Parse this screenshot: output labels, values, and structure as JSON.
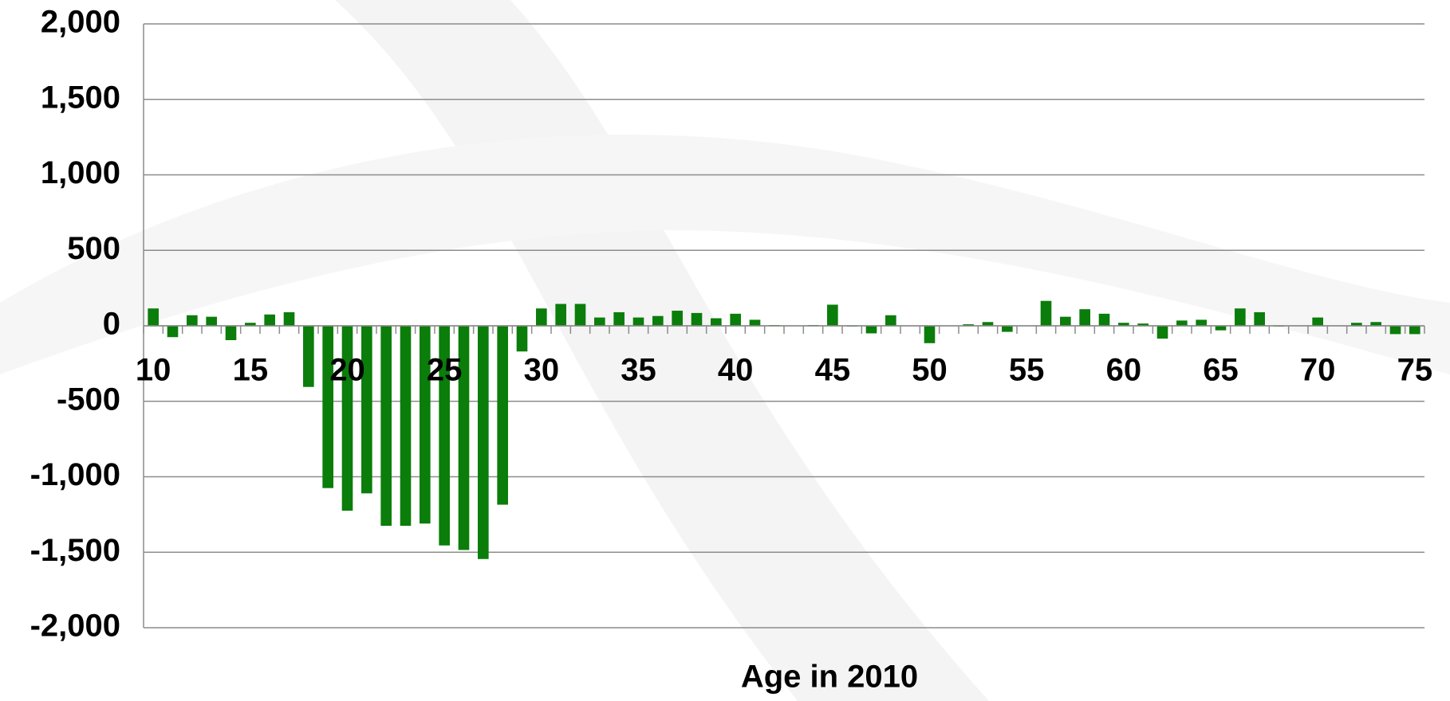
{
  "chart_data": {
    "type": "bar",
    "x_label": "Age in 2010",
    "categories": [
      "10",
      null,
      null,
      null,
      null,
      "15",
      null,
      null,
      null,
      null,
      "20",
      null,
      null,
      null,
      null,
      "25",
      null,
      null,
      null,
      null,
      "30",
      null,
      null,
      null,
      null,
      "35",
      null,
      null,
      null,
      null,
      "40",
      null,
      null,
      null,
      null,
      "45",
      null,
      null,
      null,
      null,
      "50",
      null,
      null,
      null,
      null,
      "55",
      null,
      null,
      null,
      null,
      "60",
      null,
      null,
      null,
      null,
      "65",
      null,
      null,
      null,
      null,
      "70",
      null,
      null,
      null,
      null,
      "75"
    ],
    "values": [
      115,
      -75,
      70,
      60,
      -95,
      20,
      75,
      90,
      -405,
      -1075,
      -1225,
      -1110,
      -1325,
      -1325,
      -1310,
      -1455,
      -1485,
      -1545,
      -1185,
      -170,
      115,
      145,
      145,
      55,
      90,
      55,
      65,
      100,
      85,
      50,
      80,
      40,
      5,
      0,
      5,
      140,
      -5,
      -50,
      70,
      0,
      -115,
      0,
      10,
      25,
      -40,
      0,
      165,
      60,
      110,
      80,
      20,
      15,
      -85,
      35,
      40,
      -30,
      115,
      90,
      -5,
      0,
      55,
      0,
      20,
      25,
      -55,
      -55
    ],
    "color": "#0a7d0a",
    "ylim": [
      -2000,
      2000
    ],
    "yticks": [
      {
        "value": -2000,
        "label": "-2,000"
      },
      {
        "value": -1500,
        "label": "-1,500"
      },
      {
        "value": -1000,
        "label": "-1,000"
      },
      -500,
      0,
      500,
      {
        "value": 1000,
        "label": "1,000"
      },
      {
        "value": 1500,
        "label": "1,500"
      },
      {
        "value": 2000,
        "label": "2,000"
      }
    ],
    "grid": true
  }
}
